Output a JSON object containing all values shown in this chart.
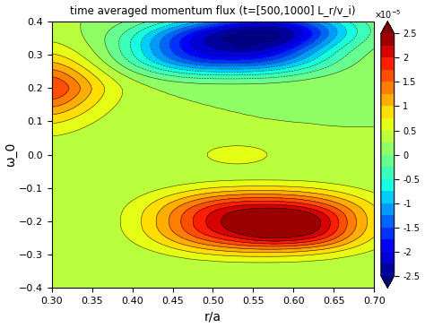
{
  "title": "time averaged momentum flux (t=[500,1000] L_r/v_i)",
  "xlabel": "r/a",
  "ylabel": "ω_0",
  "xlim": [
    0.3,
    0.7
  ],
  "ylim": [
    -0.4,
    0.4
  ],
  "vmin": -2.5e-05,
  "vmax": 2.5e-05,
  "colorbar_ticks": [
    -2.5,
    -2,
    -1.5,
    -1,
    -0.5,
    0,
    0.5,
    1,
    1.5,
    2,
    2.5
  ],
  "xticks": [
    0.3,
    0.35,
    0.4,
    0.45,
    0.5,
    0.55,
    0.6,
    0.65,
    0.7
  ],
  "yticks": [
    -0.4,
    -0.3,
    -0.2,
    -0.1,
    0,
    0.1,
    0.2,
    0.3,
    0.4
  ],
  "nx": 80,
  "ny": 80
}
